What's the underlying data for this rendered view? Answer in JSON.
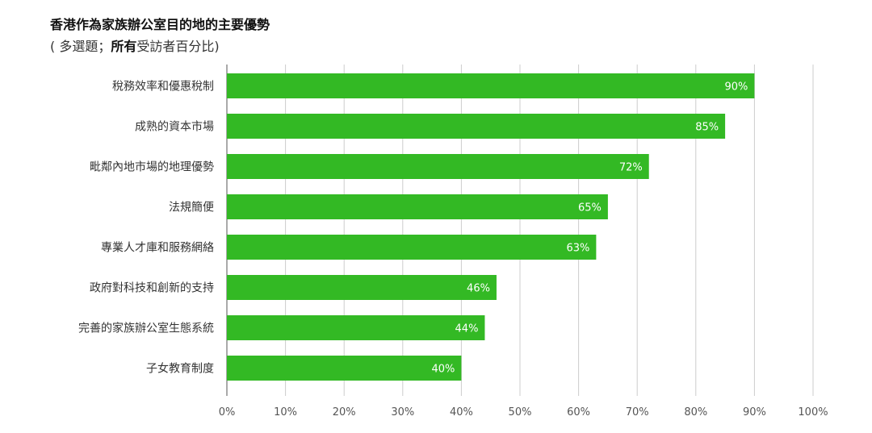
{
  "title": "香港作為家族辦公室目的地的主要優勢",
  "subtitle": {
    "prefix": "( 多選題；",
    "bold": "所有",
    "suffix": "受訪者百分比)"
  },
  "colors": {
    "bar": "#33b924",
    "grid": "#cccccc",
    "axis": "#555555"
  },
  "chart_data": {
    "type": "bar",
    "orientation": "horizontal",
    "title": "香港作為家族辦公室目的地的主要優勢",
    "subtitle": "( 多選題；所有受訪者百分比)",
    "categories": [
      "稅務效率和優惠稅制",
      "成熟的資本市場",
      "毗鄰內地市場的地理優勢",
      "法規簡便",
      "專業人才庫和服務網絡",
      "政府對科技和創新的支持",
      "完善的家族辦公室生態系統",
      "子女教育制度"
    ],
    "values": [
      90,
      85,
      72,
      65,
      63,
      46,
      44,
      40
    ],
    "data_labels": [
      "90%",
      "85%",
      "72%",
      "65%",
      "63%",
      "46%",
      "44%",
      "40%"
    ],
    "xlim": [
      0,
      100
    ],
    "x_ticks": [
      0,
      10,
      20,
      30,
      40,
      50,
      60,
      70,
      80,
      90,
      100
    ],
    "x_tick_labels": [
      "0%",
      "10%",
      "20%",
      "30%",
      "40%",
      "50%",
      "60%",
      "70%",
      "80%",
      "90%",
      "100%"
    ],
    "grid": true,
    "legend": "none"
  }
}
